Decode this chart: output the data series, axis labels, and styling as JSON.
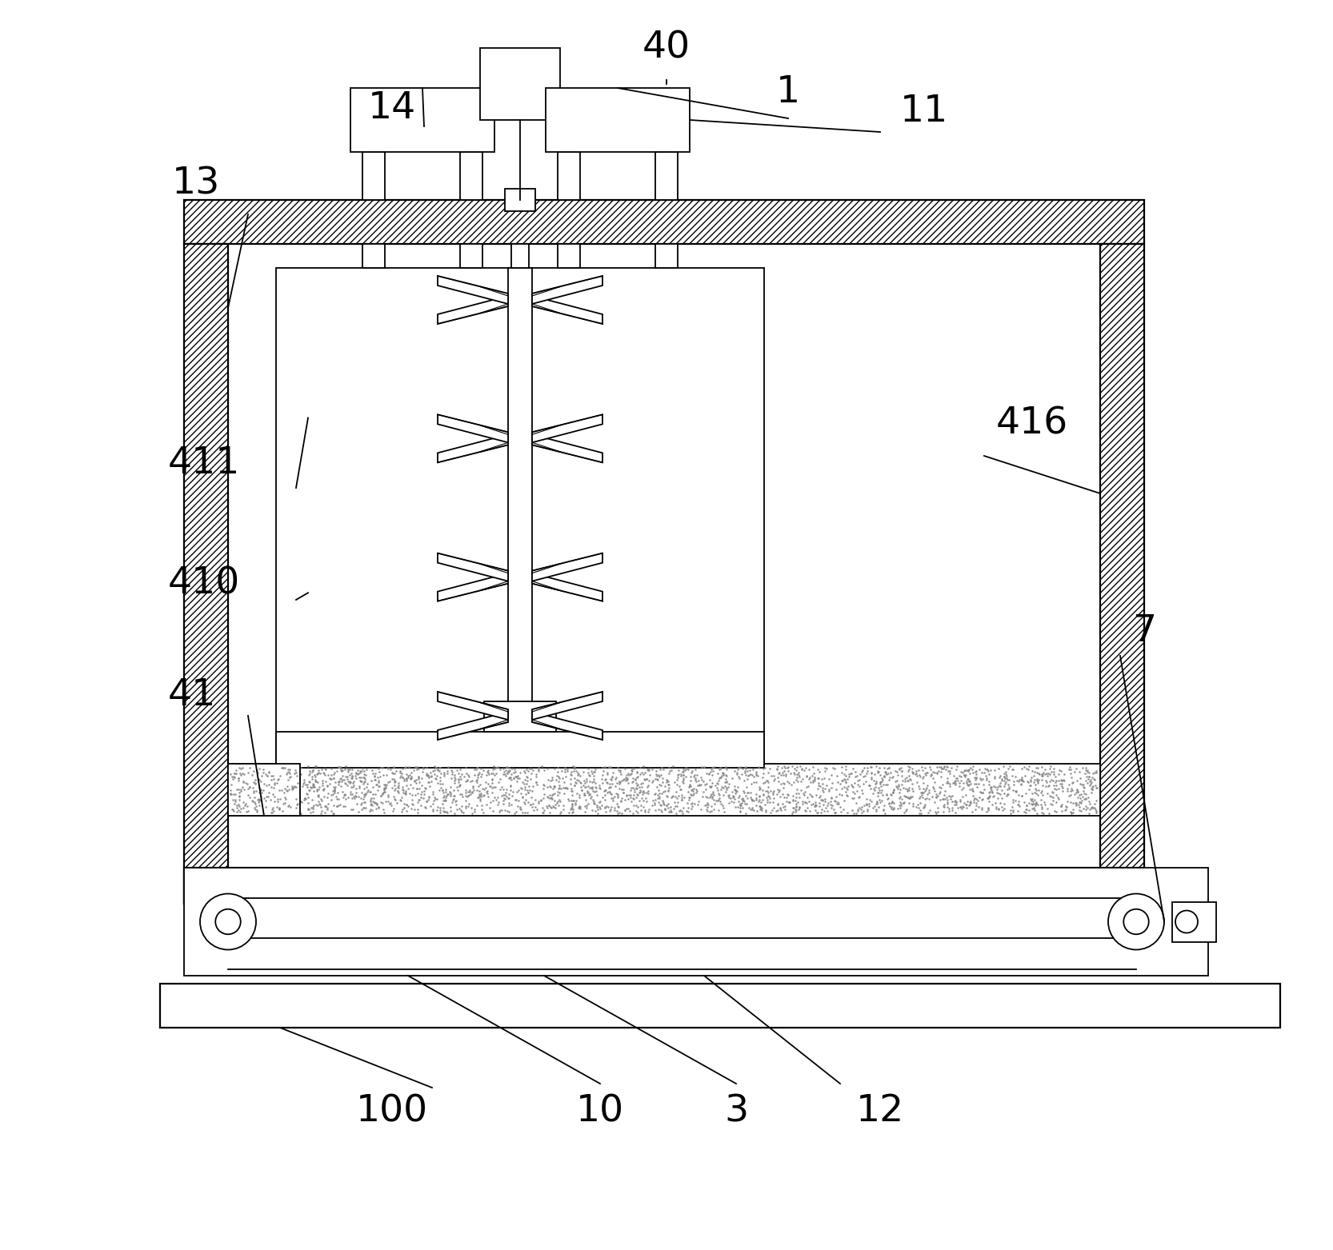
{
  "bg_color": "#ffffff",
  "line_color": "#000000",
  "lw_main": 2.0,
  "lw_thin": 1.3,
  "lw_med": 1.6
}
